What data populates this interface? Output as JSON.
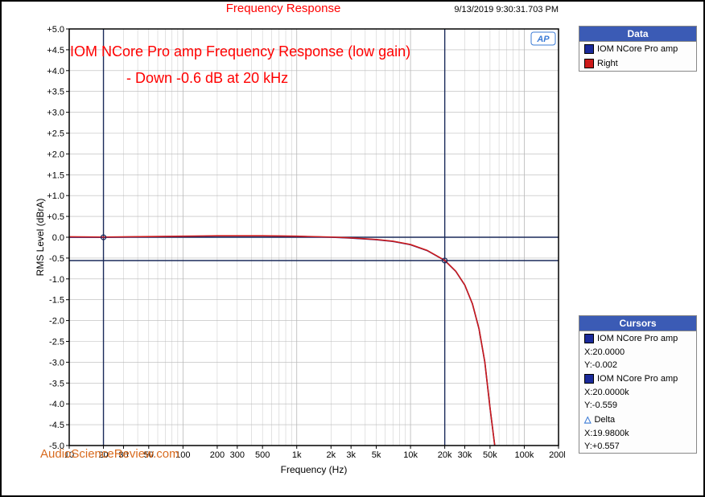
{
  "header": {
    "title": "Frequency Response",
    "timestamp": "9/13/2019 9:30:31.703 PM"
  },
  "annotations": {
    "line1": "IOM NCore Pro amp Frequency Response (low gain)",
    "line2": "- Down -0.6 dB at 20 kHz"
  },
  "watermark": "AudioScienceReview.com",
  "chart": {
    "type": "line",
    "xlabel": "Frequency (Hz)",
    "ylabel": "RMS Level (dBrA)",
    "xscale": "log",
    "xlim": [
      10,
      200000
    ],
    "ylim": [
      -5,
      5
    ],
    "ytick_step": 0.5,
    "xticks": [
      10,
      20,
      30,
      50,
      100,
      200,
      300,
      500,
      1000,
      2000,
      3000,
      5000,
      10000,
      20000,
      30000,
      50000,
      100000,
      200000
    ],
    "xtick_labels": [
      "10",
      "20",
      "30",
      "50",
      "100",
      "200",
      "300",
      "500",
      "1k",
      "2k",
      "3k",
      "5k",
      "10k",
      "20k",
      "30k",
      "50k",
      "100k",
      "200k"
    ],
    "grid_color": "#b8b8b8",
    "background_color": "#ffffff",
    "border_color": "#000000",
    "cursor_line_color": "#1a2a5a",
    "series": [
      {
        "label": "IOM NCore Pro amp",
        "color": "#1a2a9a",
        "swatch": "#1a2a9a",
        "points": [
          [
            10,
            0
          ],
          [
            20,
            -0.002
          ],
          [
            50,
            0.01
          ],
          [
            100,
            0.02
          ],
          [
            200,
            0.03
          ],
          [
            500,
            0.03
          ],
          [
            1000,
            0.02
          ],
          [
            2000,
            0.0
          ],
          [
            3000,
            -0.02
          ],
          [
            5000,
            -0.06
          ],
          [
            7000,
            -0.1
          ],
          [
            10000,
            -0.18
          ],
          [
            14000,
            -0.32
          ],
          [
            20000,
            -0.559
          ],
          [
            25000,
            -0.82
          ],
          [
            30000,
            -1.15
          ],
          [
            35000,
            -1.6
          ],
          [
            40000,
            -2.2
          ],
          [
            45000,
            -3.0
          ],
          [
            50000,
            -4.1
          ],
          [
            55000,
            -5.0
          ]
        ]
      },
      {
        "label": "Right",
        "color": "#cc1a1a",
        "swatch": "#cc1a1a",
        "points": [
          [
            10,
            0.01
          ],
          [
            20,
            0.005
          ],
          [
            50,
            0.015
          ],
          [
            100,
            0.025
          ],
          [
            200,
            0.035
          ],
          [
            500,
            0.035
          ],
          [
            1000,
            0.025
          ],
          [
            2000,
            0.005
          ],
          [
            3000,
            -0.015
          ],
          [
            5000,
            -0.055
          ],
          [
            7000,
            -0.095
          ],
          [
            10000,
            -0.175
          ],
          [
            14000,
            -0.315
          ],
          [
            20000,
            -0.555
          ],
          [
            25000,
            -0.815
          ],
          [
            30000,
            -1.145
          ],
          [
            35000,
            -1.595
          ],
          [
            40000,
            -2.195
          ],
          [
            45000,
            -2.995
          ],
          [
            50000,
            -4.095
          ],
          [
            55000,
            -5.0
          ]
        ]
      }
    ],
    "cursors_v": [
      20,
      20000
    ],
    "cursors_h": [
      0,
      -0.56
    ],
    "ap_logo_text": "AP"
  },
  "legend_data": {
    "title": "Data",
    "items": [
      {
        "label": "IOM NCore Pro amp",
        "color": "#1a2a9a"
      },
      {
        "label": "Right",
        "color": "#cc1a1a"
      }
    ]
  },
  "legend_cursors": {
    "title": "Cursors",
    "groups": [
      {
        "label": "IOM NCore Pro amp",
        "color": "#1a2a9a",
        "x": "X:20.0000",
        "y": "Y:-0.002"
      },
      {
        "label": "IOM NCore Pro amp",
        "color": "#1a2a9a",
        "x": "X:20.0000k",
        "y": "Y:-0.559"
      }
    ],
    "delta": {
      "label": "Delta",
      "x": "X:19.9800k",
      "y": "Y:+0.557"
    }
  }
}
